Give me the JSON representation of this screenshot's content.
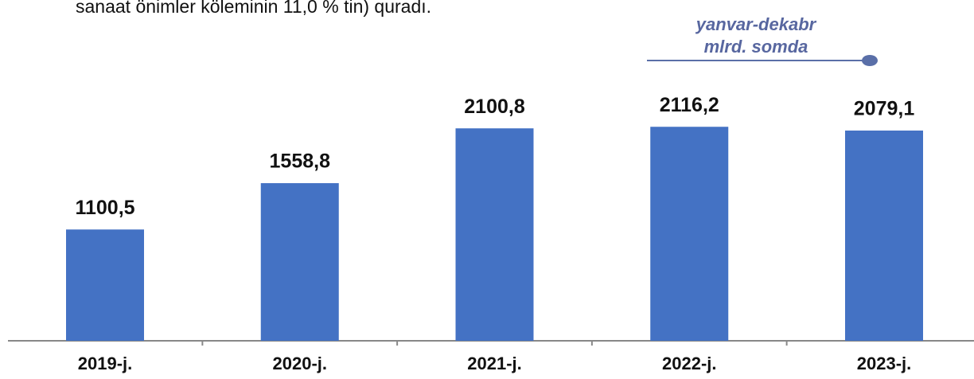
{
  "top_text": "sanaat önimler köleminin 11,0 % tin) quradı.",
  "chart_data": {
    "type": "bar",
    "annotation": [
      "yanvar-dekabr",
      "mlrd. somda"
    ],
    "categories": [
      "2019-j.",
      "2020-j.",
      "2021-j.",
      "2022-j.",
      "2023-j."
    ],
    "values": [
      1100.5,
      1558.8,
      2100.8,
      2116.2,
      2079.1
    ],
    "value_labels": [
      "1100,5",
      "1558,8",
      "2100,8",
      "2116,2",
      "2079,1"
    ],
    "color": "#4472c4"
  }
}
